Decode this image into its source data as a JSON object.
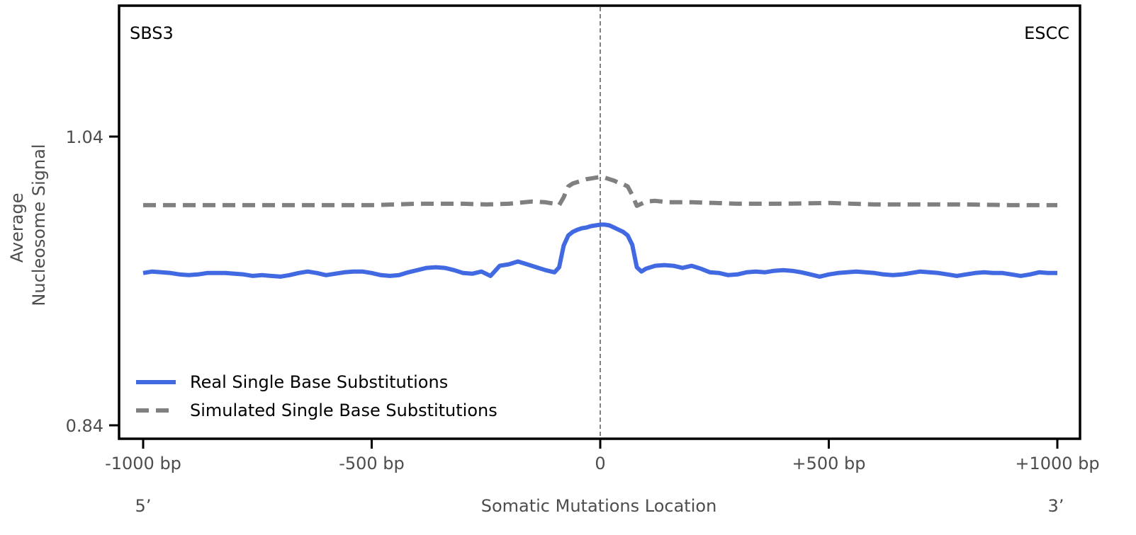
{
  "chart_data": {
    "type": "line",
    "signature_label": "SBS3",
    "cancer_type_label": "ESCC",
    "xlabel": "Somatic Mutations Location",
    "ylabel_line1": "Average",
    "ylabel_line2": "Nucleosome Signal",
    "end_labels": {
      "left": "5’",
      "right": "3’"
    },
    "xlim": [
      -1000,
      1000
    ],
    "ylim": [
      0.84,
      1.04
    ],
    "x_ticks": [
      -1000,
      -500,
      0,
      500,
      1000
    ],
    "x_tick_labels": [
      "-1000 bp",
      "-500 bp",
      "0",
      "+500 bp",
      "+1000 bp"
    ],
    "y_ticks": [
      0.84,
      1.04
    ],
    "y_tick_labels": [
      "0.84",
      "1.04"
    ],
    "center_line": 0,
    "grid": false,
    "legend_position": "bottom-left",
    "series": [
      {
        "name": "Real Single Base Substitutions",
        "color": "#4169e1",
        "style": "solid",
        "x": [
          -1000,
          -980,
          -960,
          -940,
          -920,
          -900,
          -880,
          -860,
          -840,
          -820,
          -800,
          -780,
          -760,
          -740,
          -720,
          -700,
          -680,
          -660,
          -640,
          -620,
          -600,
          -580,
          -560,
          -540,
          -520,
          -500,
          -480,
          -460,
          -440,
          -420,
          -400,
          -380,
          -360,
          -340,
          -320,
          -300,
          -280,
          -260,
          -240,
          -220,
          -200,
          -180,
          -160,
          -140,
          -120,
          -100,
          -90,
          -80,
          -70,
          -60,
          -50,
          -40,
          -30,
          -20,
          -10,
          0,
          10,
          20,
          30,
          40,
          50,
          60,
          70,
          80,
          90,
          100,
          120,
          140,
          160,
          180,
          200,
          220,
          240,
          260,
          280,
          300,
          320,
          340,
          360,
          380,
          400,
          420,
          440,
          460,
          480,
          500,
          520,
          540,
          560,
          580,
          600,
          620,
          640,
          660,
          680,
          700,
          720,
          740,
          760,
          780,
          800,
          820,
          840,
          860,
          880,
          900,
          920,
          940,
          960,
          980,
          1000
        ],
        "y": [
          0.9455,
          0.9465,
          0.946,
          0.9455,
          0.9445,
          0.944,
          0.9445,
          0.9455,
          0.9455,
          0.9455,
          0.945,
          0.9445,
          0.9435,
          0.944,
          0.9435,
          0.943,
          0.944,
          0.9455,
          0.9465,
          0.9455,
          0.944,
          0.945,
          0.946,
          0.9465,
          0.9465,
          0.9455,
          0.944,
          0.9435,
          0.944,
          0.946,
          0.9475,
          0.949,
          0.9495,
          0.949,
          0.9475,
          0.9455,
          0.945,
          0.9465,
          0.9435,
          0.9505,
          0.9515,
          0.9535,
          0.9515,
          0.9495,
          0.9475,
          0.946,
          0.9495,
          0.9645,
          0.9715,
          0.974,
          0.9755,
          0.9765,
          0.977,
          0.978,
          0.9785,
          0.979,
          0.979,
          0.9785,
          0.977,
          0.9755,
          0.974,
          0.9715,
          0.965,
          0.9495,
          0.9465,
          0.9485,
          0.9505,
          0.951,
          0.9505,
          0.949,
          0.9505,
          0.9485,
          0.946,
          0.9455,
          0.944,
          0.9445,
          0.946,
          0.9465,
          0.946,
          0.947,
          0.9475,
          0.947,
          0.946,
          0.9445,
          0.943,
          0.9445,
          0.9455,
          0.946,
          0.9465,
          0.946,
          0.9455,
          0.9445,
          0.944,
          0.9445,
          0.9455,
          0.9465,
          0.946,
          0.9455,
          0.9445,
          0.9435,
          0.9445,
          0.9455,
          0.946,
          0.9455,
          0.9455,
          0.9445,
          0.9435,
          0.9445,
          0.946,
          0.9455,
          0.9455
        ]
      },
      {
        "name": "Simulated Single Base Substitutions",
        "color": "#808080",
        "style": "dashed",
        "x": [
          -1000,
          -900,
          -800,
          -700,
          -600,
          -500,
          -400,
          -300,
          -250,
          -200,
          -150,
          -120,
          -100,
          -90,
          -80,
          -70,
          -60,
          -50,
          -40,
          -30,
          -20,
          -10,
          0,
          10,
          20,
          30,
          40,
          50,
          60,
          70,
          80,
          90,
          100,
          120,
          150,
          200,
          250,
          300,
          400,
          500,
          600,
          700,
          800,
          900,
          1000
        ],
        "y": [
          0.9925,
          0.9925,
          0.9925,
          0.9925,
          0.9925,
          0.9925,
          0.9935,
          0.9935,
          0.993,
          0.9935,
          0.995,
          0.9945,
          0.9935,
          0.9925,
          0.998,
          1.0055,
          1.0075,
          1.0085,
          1.0095,
          1.0105,
          1.011,
          1.0115,
          1.012,
          1.0115,
          1.0105,
          1.0095,
          1.008,
          1.007,
          1.0055,
          0.9995,
          0.992,
          0.9935,
          0.995,
          0.9955,
          0.9945,
          0.9945,
          0.994,
          0.9935,
          0.9935,
          0.994,
          0.993,
          0.993,
          0.993,
          0.9925,
          0.9925
        ]
      }
    ]
  }
}
